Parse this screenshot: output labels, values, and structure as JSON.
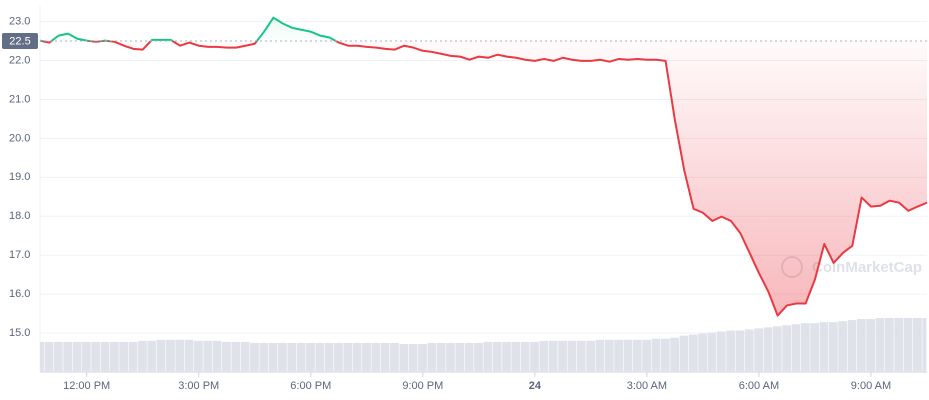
{
  "chart_data": {
    "type": "line",
    "baseline": 22.5,
    "watermark": "CoinMarketCap",
    "up_color": "#16c784",
    "down_color": "#ea3943",
    "grid": true,
    "xlim": [
      10.75,
      34.5
    ],
    "ylim": [
      14.0,
      23.4
    ],
    "xticks": [
      {
        "value": 12,
        "label": "12:00 PM"
      },
      {
        "value": 15,
        "label": "3:00 PM"
      },
      {
        "value": 18,
        "label": "6:00 PM"
      },
      {
        "value": 21,
        "label": "9:00 PM"
      },
      24,
      {
        "value": 27,
        "label": "3:00 AM"
      },
      {
        "value": 30,
        "label": "6:00 AM"
      },
      {
        "value": 33,
        "label": "9:00 AM"
      }
    ],
    "yticks": [
      {
        "value": 15,
        "label": "15.0"
      },
      {
        "value": 16,
        "label": "16.0"
      },
      {
        "value": 17,
        "label": "17.0"
      },
      {
        "value": 18,
        "label": "18.0"
      },
      {
        "value": 19,
        "label": "19.0"
      },
      {
        "value": 20,
        "label": "20.0"
      },
      {
        "value": 21,
        "label": "21.0"
      },
      {
        "value": 22,
        "label": "22.0"
      },
      {
        "value": 23,
        "label": "23.0"
      }
    ],
    "x": [
      10.75,
      11,
      11.25,
      11.5,
      11.75,
      12,
      12.25,
      12.5,
      12.75,
      13,
      13.25,
      13.5,
      13.75,
      14,
      14.25,
      14.5,
      14.75,
      15,
      15.25,
      15.5,
      15.75,
      16,
      16.25,
      16.5,
      16.75,
      17,
      17.25,
      17.5,
      17.75,
      18,
      18.25,
      18.5,
      18.75,
      19,
      19.25,
      19.5,
      19.75,
      20,
      20.25,
      20.5,
      20.75,
      21,
      21.25,
      21.5,
      21.75,
      22,
      22.25,
      22.5,
      22.75,
      23,
      23.25,
      23.5,
      23.75,
      24,
      24.25,
      24.5,
      24.75,
      25,
      25.25,
      25.5,
      25.75,
      26,
      26.25,
      26.5,
      26.75,
      27,
      27.25,
      27.5,
      27.75,
      28,
      28.25,
      28.5,
      28.75,
      29,
      29.25,
      29.5,
      29.75,
      30,
      30.25,
      30.5,
      30.75,
      31,
      31.25,
      31.5,
      31.75,
      32,
      32.25,
      32.5,
      32.75,
      33,
      33.25,
      33.5,
      33.75,
      34,
      34.25,
      34.5
    ],
    "values": [
      22.51,
      22.46,
      22.64,
      22.69,
      22.56,
      22.51,
      22.48,
      22.51,
      22.48,
      22.38,
      22.3,
      22.28,
      22.53,
      22.53,
      22.53,
      22.38,
      22.46,
      22.38,
      22.35,
      22.35,
      22.33,
      22.33,
      22.38,
      22.43,
      22.74,
      23.1,
      22.95,
      22.84,
      22.79,
      22.74,
      22.64,
      22.59,
      22.46,
      22.38,
      22.38,
      22.35,
      22.33,
      22.3,
      22.28,
      22.38,
      22.33,
      22.25,
      22.22,
      22.17,
      22.12,
      22.1,
      22.02,
      22.1,
      22.07,
      22.15,
      22.1,
      22.07,
      22.02,
      21.99,
      22.04,
      21.99,
      22.07,
      22.02,
      21.99,
      21.99,
      22.02,
      21.97,
      22.04,
      22.02,
      22.04,
      22.02,
      22.02,
      21.99,
      20.47,
      19.18,
      18.19,
      18.09,
      17.88,
      17.99,
      17.88,
      17.57,
      17.06,
      16.54,
      16.07,
      15.45,
      15.71,
      15.76,
      15.76,
      16.38,
      17.29,
      16.8,
      17.06,
      17.24,
      18.48,
      18.25,
      18.27,
      18.4,
      18.35,
      18.14,
      18.25,
      18.35
    ],
    "volume": [
      29,
      29,
      29,
      29,
      29,
      29,
      29,
      29,
      29,
      29,
      29,
      30,
      30,
      31,
      31,
      31,
      31,
      30,
      30,
      30,
      29,
      29,
      29,
      28,
      28,
      28,
      28,
      28,
      28,
      28,
      28,
      28,
      28,
      28,
      28,
      28,
      28,
      28,
      28,
      27,
      27,
      27,
      28,
      28,
      28,
      28,
      28,
      28,
      29,
      29,
      29,
      29,
      29,
      29,
      30,
      30,
      30,
      30,
      30,
      30,
      31,
      31,
      31,
      31,
      31,
      31,
      32,
      32,
      33,
      35,
      36,
      37,
      38,
      39,
      40,
      40,
      41,
      42,
      43,
      44,
      45,
      46,
      47,
      47,
      48,
      48,
      49,
      50,
      51,
      51,
      52,
      52,
      52,
      52,
      52,
      52
    ],
    "volume_color": "#dfe2e8"
  }
}
